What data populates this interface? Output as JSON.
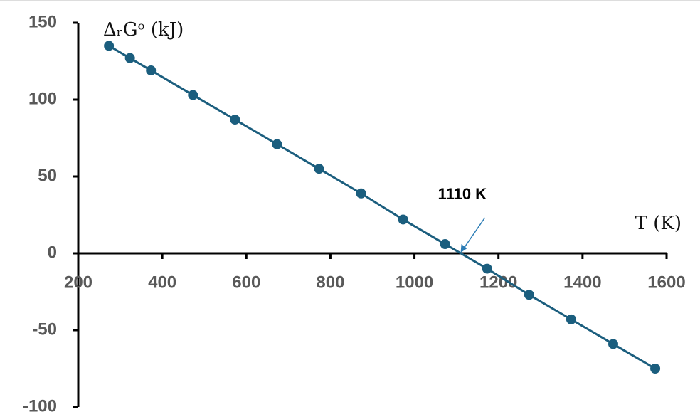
{
  "chart_data": {
    "type": "line",
    "x_label": "T (K)",
    "y_label": "ΔᵣGᵒ (kJ)",
    "x": [
      273,
      323,
      373,
      473,
      573,
      673,
      773,
      873,
      973,
      1073,
      1173,
      1273,
      1373,
      1473,
      1573
    ],
    "series": [
      {
        "name": "ΔᵣGᵒ",
        "color": "#1b5e7e",
        "values": [
          135,
          127,
          119,
          103,
          87,
          71,
          55,
          39,
          22,
          6,
          -10,
          -27,
          -43,
          -59,
          -75
        ]
      }
    ],
    "xlim": [
      200,
      1600
    ],
    "xticks": [
      200,
      400,
      600,
      800,
      1000,
      1200,
      1400,
      1600
    ],
    "ylim": [
      -100,
      150
    ],
    "yticks": [
      -100,
      -50,
      0,
      50,
      100,
      150
    ],
    "annotations": [
      {
        "text": "1110 K",
        "x": 1110,
        "y": 0
      }
    ]
  }
}
